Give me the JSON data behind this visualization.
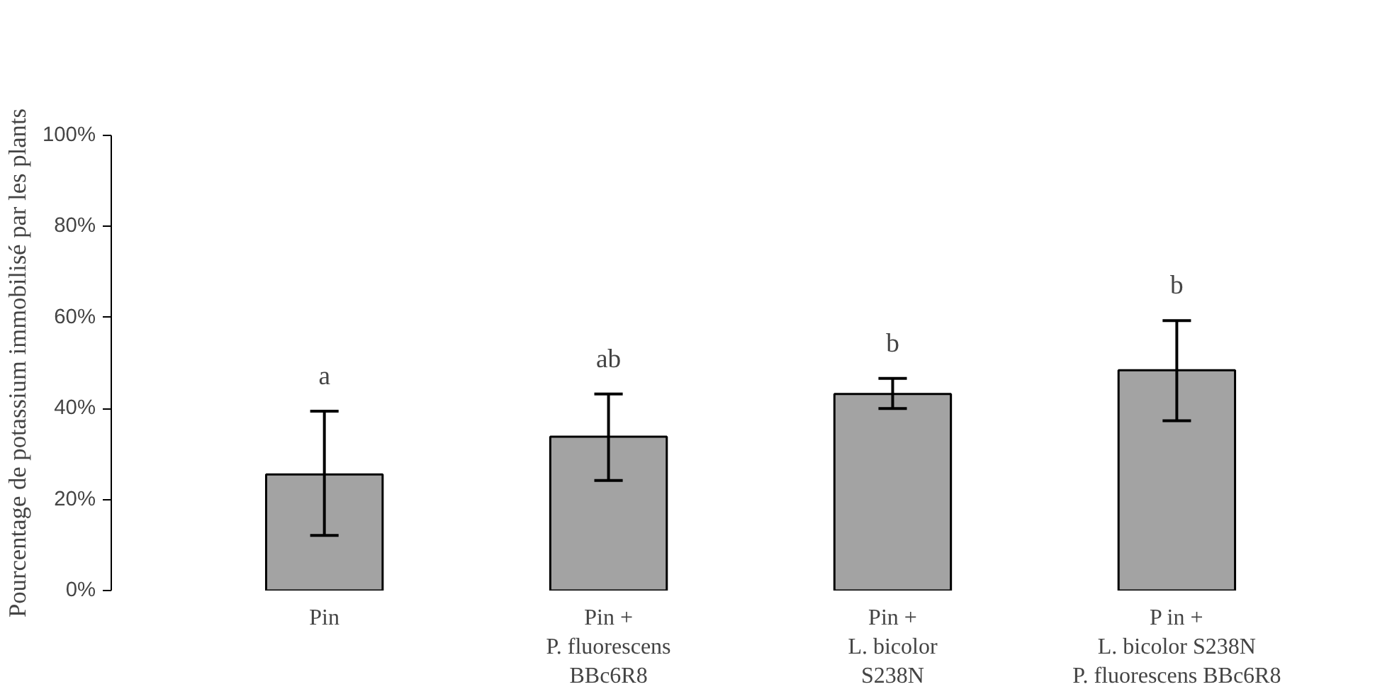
{
  "chart_data": {
    "type": "bar",
    "ylabel": "Pourcentage de potassium immobilisé par les plants",
    "categories": [
      "Pin",
      "Pin +\nP. fluorescens\nBBc6R8",
      "Pin +\nL. bicolor\nS238N",
      "P in +\nL. bicolor S238N\nP. fluorescens BBc6R8"
    ],
    "values": [
      25.5,
      33.8,
      43.2,
      48.4
    ],
    "errors": [
      [
        12.1,
        39.4
      ],
      [
        24.2,
        43.2
      ],
      [
        40,
        46.6
      ],
      [
        37.3,
        59.3
      ]
    ],
    "color": "#a3a3a3",
    "ylim": [
      0,
      100
    ],
    "yticks": [
      {
        "value": 0,
        "label": "0%"
      },
      {
        "value": 20,
        "label": "20%"
      },
      {
        "value": 40,
        "label": "40%"
      },
      {
        "value": 60,
        "label": "60%"
      },
      {
        "value": 80,
        "label": "80%"
      },
      {
        "value": 100,
        "label": "100%"
      }
    ],
    "grid": false,
    "annotations": [
      "a",
      "ab",
      "b",
      "b"
    ]
  }
}
